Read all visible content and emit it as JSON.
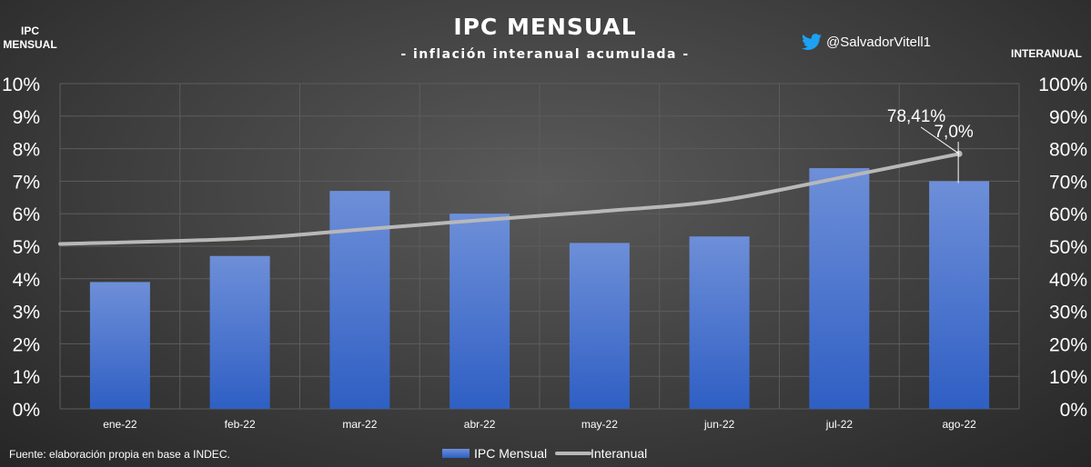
{
  "header": {
    "title": "IPC MENSUAL",
    "subtitle": "- inflación interanual acumulada -",
    "twitter_handle": "@SalvadorVitell1",
    "twitter_icon": "twitter-bird-icon",
    "twitter_color": "#1DA1F2"
  },
  "footer": {
    "source": "Fuente: elaboración propia en base a INDEC."
  },
  "colors": {
    "bar_top": "#6e8fd8",
    "bar_bottom": "#2f5fc4",
    "line": "#b8b8b8",
    "grid": "#5c5c5c"
  },
  "chart_data": {
    "type": "bar",
    "title": "IPC MENSUAL",
    "subtitle": "- inflación interanual acumulada -",
    "categories": [
      "ene-22",
      "feb-22",
      "mar-22",
      "abr-22",
      "may-22",
      "jun-22",
      "jul-22",
      "ago-22"
    ],
    "series": [
      {
        "name": "IPC Mensual",
        "type": "bar",
        "axis": "left",
        "values": [
          3.9,
          4.7,
          6.7,
          6.0,
          5.1,
          5.3,
          7.4,
          7.0
        ]
      },
      {
        "name": "Interanual",
        "type": "line",
        "axis": "right",
        "values": [
          50.7,
          52.3,
          55.1,
          58.0,
          60.7,
          64.0,
          71.0,
          78.41
        ]
      }
    ],
    "left_axis": {
      "title_line1": "IPC",
      "title_line2": "MENSUAL",
      "min": 0,
      "max": 10,
      "step": 1,
      "tick_labels": [
        "0%",
        "1%",
        "2%",
        "3%",
        "4%",
        "5%",
        "6%",
        "7%",
        "8%",
        "9%",
        "10%"
      ]
    },
    "right_axis": {
      "title": "INTERANUAL",
      "min": 0,
      "max": 100,
      "step": 10,
      "tick_labels": [
        "0%",
        "10%",
        "20%",
        "30%",
        "40%",
        "50%",
        "60%",
        "70%",
        "80%",
        "90%",
        "100%"
      ]
    },
    "annotations": [
      {
        "text": "78,41%",
        "category": "ago-22",
        "series": "Interanual"
      },
      {
        "text": "7,0%",
        "category": "ago-22",
        "series": "IPC Mensual"
      }
    ],
    "legend": {
      "position": "bottom",
      "entries": [
        {
          "label": "IPC Mensual",
          "kind": "bar"
        },
        {
          "label": "Interanual",
          "kind": "line"
        }
      ]
    },
    "grid": true
  }
}
